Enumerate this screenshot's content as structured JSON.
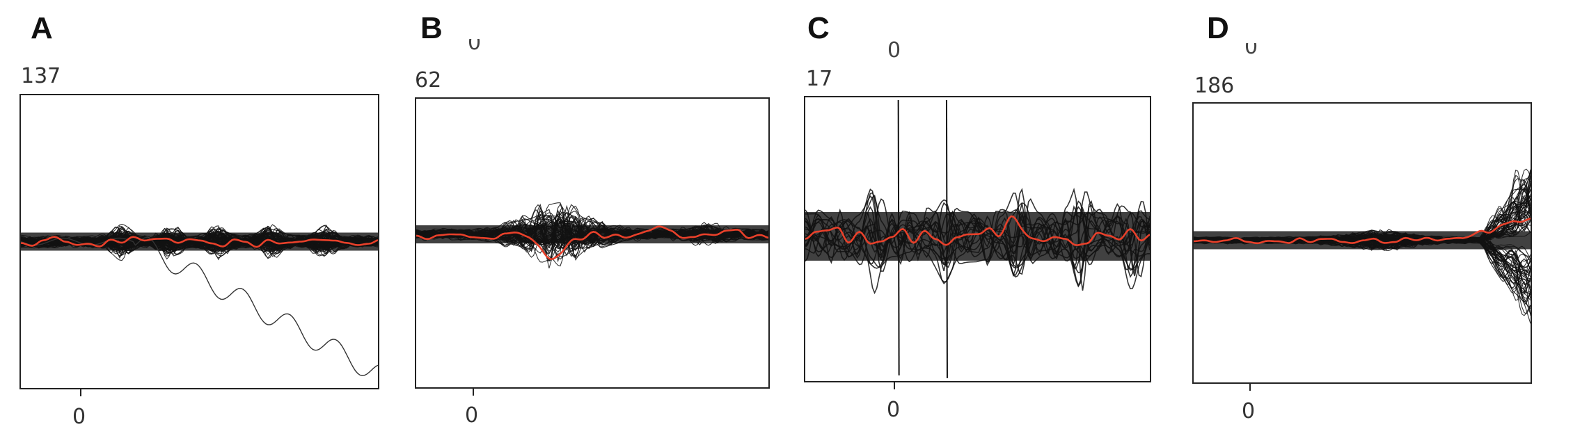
{
  "chart_data": [
    {
      "type": "line",
      "panel_label": "A",
      "count_label": "137",
      "x_tick_label": "0",
      "top_tick_label": "",
      "series": [
        {
          "role": "individual_traces",
          "color": "#111111",
          "count": 137
        },
        {
          "role": "average_trace",
          "color": "#e8402a"
        }
      ],
      "features": {
        "outlier_trace_downward": true
      }
    },
    {
      "type": "line",
      "panel_label": "B",
      "count_label": "62",
      "x_tick_label": "0",
      "top_tick_label": "0",
      "series": [
        {
          "role": "individual_traces",
          "color": "#111111",
          "count": 62
        },
        {
          "role": "average_trace",
          "color": "#e8402a"
        }
      ]
    },
    {
      "type": "line",
      "panel_label": "C",
      "count_label": "17",
      "x_tick_label": "0",
      "top_tick_label": "0",
      "series": [
        {
          "role": "individual_traces",
          "color": "#111111",
          "count": 17
        },
        {
          "role": "average_trace",
          "color": "#e8402a"
        }
      ]
    },
    {
      "type": "line",
      "panel_label": "D",
      "count_label": "186",
      "x_tick_label": "0",
      "top_tick_label": "0",
      "series": [
        {
          "role": "individual_traces",
          "color": "#111111",
          "count": 186
        },
        {
          "role": "average_trace",
          "color": "#e8402a"
        }
      ]
    }
  ]
}
